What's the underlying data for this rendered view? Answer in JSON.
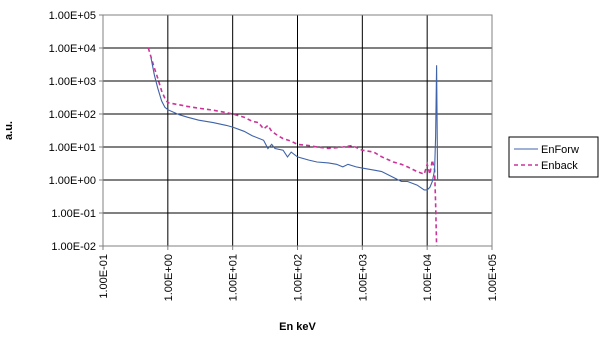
{
  "chart_data": {
    "type": "line",
    "title": "",
    "xlabel": "En keV",
    "ylabel": "a.u.",
    "x_scale": "log",
    "y_scale": "log",
    "xlim": [
      0.1,
      100000
    ],
    "ylim": [
      0.01,
      100000
    ],
    "x_ticks": [
      "1.00E-01",
      "1.00E+00",
      "1.00E+01",
      "1.00E+02",
      "1.00E+03",
      "1.00E+04",
      "1.00E+05"
    ],
    "y_ticks": [
      "1.00E-02",
      "1.00E-01",
      "1.00E+00",
      "1.00E+01",
      "1.00E+02",
      "1.00E+03",
      "1.00E+04",
      "1.00E+05"
    ],
    "grid": {
      "x_major": true,
      "y_major": true
    },
    "legend_position": "right",
    "series": [
      {
        "name": "EnForw",
        "color": "#3f63a8",
        "dash": "solid",
        "points": [
          [
            0.55,
            5000
          ],
          [
            0.62,
            1500
          ],
          [
            0.7,
            600
          ],
          [
            0.8,
            250
          ],
          [
            0.9,
            160
          ],
          [
            1.0,
            135
          ],
          [
            1.5,
            95
          ],
          [
            2.0,
            80
          ],
          [
            3.0,
            65
          ],
          [
            5.0,
            55
          ],
          [
            8.0,
            45
          ],
          [
            10.0,
            40
          ],
          [
            15,
            30
          ],
          [
            20,
            22
          ],
          [
            30,
            16
          ],
          [
            35,
            9
          ],
          [
            40,
            12
          ],
          [
            45,
            9
          ],
          [
            60,
            8
          ],
          [
            70,
            5
          ],
          [
            80,
            7
          ],
          [
            100,
            5
          ],
          [
            150,
            4
          ],
          [
            200,
            3.5
          ],
          [
            300,
            3.3
          ],
          [
            400,
            3
          ],
          [
            500,
            2.5
          ],
          [
            600,
            3
          ],
          [
            800,
            2.5
          ],
          [
            1000,
            2.3
          ],
          [
            1500,
            2
          ],
          [
            2000,
            1.8
          ],
          [
            3000,
            1.2
          ],
          [
            4000,
            0.9
          ],
          [
            5000,
            0.9
          ],
          [
            7000,
            0.7
          ],
          [
            9000,
            0.5
          ],
          [
            10000,
            0.5
          ],
          [
            11000,
            0.6
          ],
          [
            12000,
            0.9
          ],
          [
            13000,
            2
          ],
          [
            13500,
            20
          ],
          [
            14000,
            3000
          ],
          [
            14500,
            1
          ]
        ]
      },
      {
        "name": "Enback",
        "color": "#cc3399",
        "dash": "dashed",
        "points": [
          [
            0.5,
            10000
          ],
          [
            0.6,
            3000
          ],
          [
            0.7,
            1200
          ],
          [
            0.8,
            500
          ],
          [
            0.9,
            300
          ],
          [
            1.0,
            220
          ],
          [
            1.5,
            190
          ],
          [
            2.0,
            170
          ],
          [
            3.0,
            150
          ],
          [
            5.0,
            130
          ],
          [
            8.0,
            110
          ],
          [
            10.0,
            100
          ],
          [
            15,
            80
          ],
          [
            20,
            60
          ],
          [
            25,
            55
          ],
          [
            30,
            35
          ],
          [
            35,
            45
          ],
          [
            40,
            30
          ],
          [
            50,
            22
          ],
          [
            60,
            18
          ],
          [
            80,
            15
          ],
          [
            100,
            12
          ],
          [
            150,
            11
          ],
          [
            200,
            10
          ],
          [
            300,
            9
          ],
          [
            500,
            10
          ],
          [
            700,
            11
          ],
          [
            1000,
            8
          ],
          [
            1500,
            7
          ],
          [
            2000,
            5
          ],
          [
            3000,
            3.5
          ],
          [
            4000,
            3
          ],
          [
            5000,
            2.5
          ],
          [
            7000,
            1.8
          ],
          [
            9000,
            1.5
          ],
          [
            10000,
            3
          ],
          [
            11000,
            1.5
          ],
          [
            12000,
            4
          ],
          [
            13000,
            2
          ],
          [
            13500,
            0.2
          ],
          [
            14000,
            0.01
          ]
        ]
      }
    ]
  }
}
